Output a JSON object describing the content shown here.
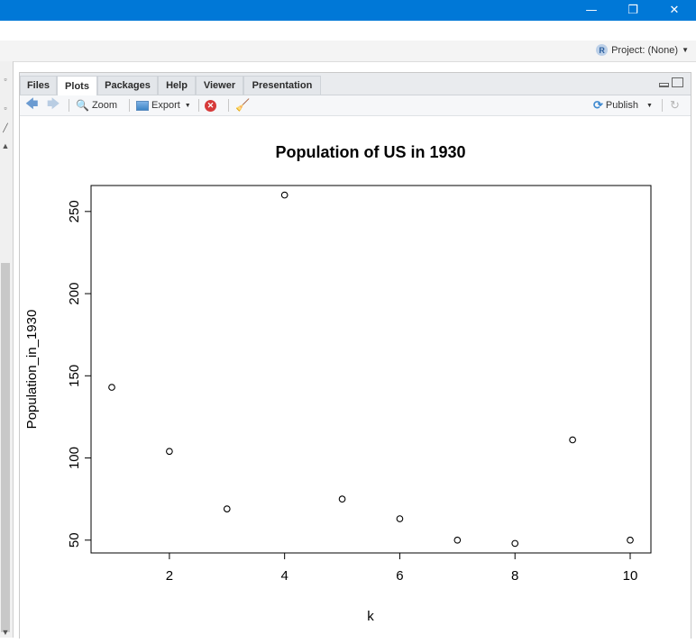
{
  "window": {
    "minimize_glyph": "—",
    "restore_glyph": "❐",
    "close_glyph": "✕"
  },
  "project": {
    "label": "Project: (None)",
    "icon": "r-project-icon",
    "icon_glyph": "R"
  },
  "tabs": [
    {
      "label": "Files",
      "active": false
    },
    {
      "label": "Plots",
      "active": true
    },
    {
      "label": "Packages",
      "active": false
    },
    {
      "label": "Help",
      "active": false
    },
    {
      "label": "Viewer",
      "active": false
    },
    {
      "label": "Presentation",
      "active": false
    }
  ],
  "toolbar": {
    "zoom_label": "Zoom",
    "export_label": "Export",
    "publish_label": "Publish"
  },
  "chart_data": {
    "type": "scatter",
    "title": "Population of US in 1930",
    "xlabel": "k",
    "ylabel": "Population_in_1930",
    "x": [
      1,
      2,
      3,
      4,
      5,
      6,
      7,
      8,
      9,
      10
    ],
    "y": [
      143,
      104,
      69,
      260,
      75,
      63,
      50,
      48,
      111,
      50
    ],
    "xticks": [
      2,
      4,
      6,
      8,
      10
    ],
    "yticks": [
      50,
      100,
      150,
      200,
      250
    ],
    "xlim": [
      0.64,
      10.36
    ],
    "ylim": [
      42.2,
      265.8
    ],
    "grid": false,
    "marker": "open-circle"
  }
}
